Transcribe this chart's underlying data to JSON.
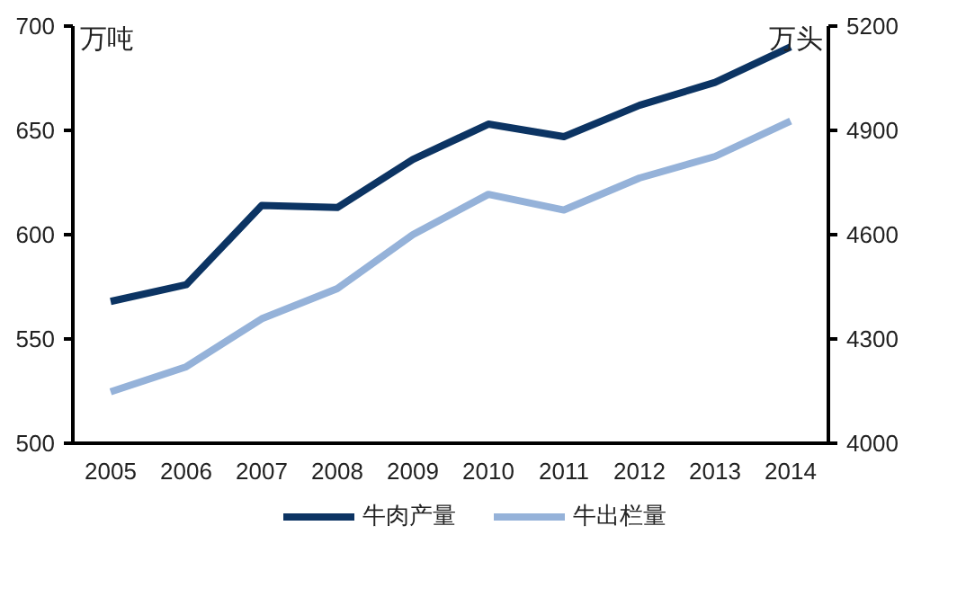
{
  "chart_data": {
    "type": "line",
    "ylabel": "万吨",
    "y2label": "万头",
    "categories": [
      "2005",
      "2006",
      "2007",
      "2008",
      "2009",
      "2010",
      "2011",
      "2012",
      "2013",
      "2014"
    ],
    "series": [
      {
        "name": "牛肉产量",
        "color": "#0c3463",
        "values": [
          568,
          576,
          614,
          613,
          636,
          653,
          647,
          662,
          673,
          690
        ]
      },
      {
        "name": "牛出栏量",
        "color": "#95b2d9",
        "axis": "y2",
        "values": [
          4148,
          4220,
          4358,
          4445,
          4600,
          4716,
          4671,
          4763,
          4825,
          4927
        ]
      }
    ],
    "ylim": [
      500,
      700
    ],
    "yticks": [
      500,
      550,
      600,
      650,
      700
    ],
    "y2lim": [
      4000,
      5200
    ],
    "y2ticks": [
      4000,
      4300,
      4600,
      4900,
      5200
    ],
    "grid": false,
    "legend": "bottom",
    "marker": "none",
    "line_style": "solid"
  }
}
